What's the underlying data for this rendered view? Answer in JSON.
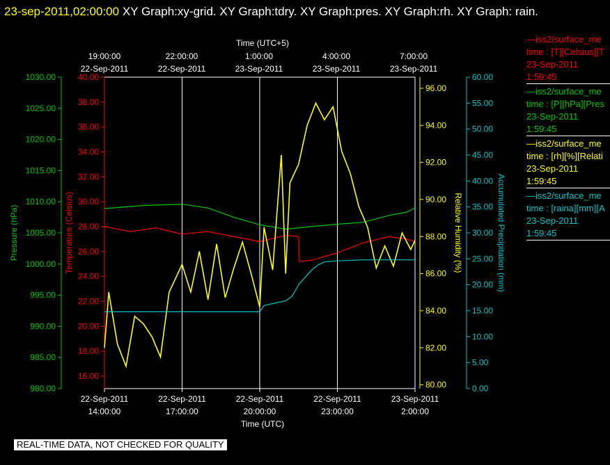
{
  "header": {
    "time": "23-sep-2011,02:00:00",
    "title": "XY Graph:xy-grid.  XY Graph:tdry.  XY Graph:pres.  XY Graph:rh.  XY Graph: rain."
  },
  "notice": "REAL-TIME DATA, NOT CHECKED FOR QUALITY",
  "colors": {
    "pressure": "#00c800",
    "temperature": "#ff0000",
    "rh": "#ffff00",
    "rain": "#00c8c8",
    "grid": "#ffffff"
  },
  "legend": [
    {
      "title": "—iss2/surface_me",
      "lines": [
        "time : [T][Celsius][T",
        "23-Sep-2011",
        "1:59:45"
      ],
      "color": "#ff0000"
    },
    {
      "title": "—iss2/surface_me",
      "lines": [
        "time : [P][hPa][Pres",
        "23-Sep-2011",
        "1:59:45"
      ],
      "color": "#00c800"
    },
    {
      "title": "—iss2/surface_me",
      "lines": [
        "time : [rh][%][Relati",
        "23-Sep-2011",
        "1:59:45"
      ],
      "color": "#ffff00"
    },
    {
      "title": "—iss2/surface_me",
      "lines": [
        "time : [raina][mm][A",
        "23-Sep-2011",
        "1:59:45"
      ],
      "color": "#00c8c8"
    }
  ],
  "chart_data": {
    "type": "line",
    "x_top_label": "Time (UTC+5)",
    "x_bottom_label": "Time (UTC)",
    "x_range": [
      "2011-09-22T14:00",
      "2011-09-23T02:00"
    ],
    "x_ticks_bottom": [
      {
        "date": "22-Sep-2011",
        "time": "14:00:00"
      },
      {
        "date": "22-Sep-2011",
        "time": "17:00:00"
      },
      {
        "date": "22-Sep-2011",
        "time": "20:00:00"
      },
      {
        "date": "22-Sep-2011",
        "time": "23:00:00"
      },
      {
        "date": "23-Sep-2011",
        "time": "2:00:00"
      }
    ],
    "x_ticks_top": [
      {
        "time": "19:00:00",
        "date": "22-Sep-2011"
      },
      {
        "time": "22:00:00",
        "date": "22-Sep-2011"
      },
      {
        "time": "1:00:00",
        "date": "23-Sep-2011"
      },
      {
        "time": "4:00:00",
        "date": "23-Sep-2011"
      },
      {
        "time": "7:00:00",
        "date": "23-Sep-2011"
      }
    ],
    "axes": {
      "pressure": {
        "label": "Pressure (hPa)",
        "range": [
          980,
          1030
        ],
        "ticks": [
          "980.00",
          "985.00",
          "990.00",
          "995.00",
          "1000.00",
          "1005.00",
          "1010.00",
          "1015.00",
          "1020.00",
          "1025.00",
          "1030.00"
        ]
      },
      "temperature": {
        "label": "Temperature (Celsius)",
        "range": [
          15,
          40
        ],
        "ticks": [
          "16.00",
          "18.00",
          "20.00",
          "22.00",
          "24.00",
          "26.00",
          "28.00",
          "30.00",
          "32.00",
          "34.00",
          "36.00",
          "38.00",
          "40.00"
        ]
      },
      "rh": {
        "label": "Relative Humidity (%)",
        "range": [
          79.8,
          96.6
        ],
        "ticks": [
          "80.00",
          "82.00",
          "84.00",
          "86.00",
          "88.00",
          "90.00",
          "92.00",
          "94.00",
          "96.00"
        ]
      },
      "rain": {
        "label": "Accumulated Precipitation (mm)",
        "range": [
          0,
          60
        ],
        "ticks": [
          "0.00",
          "5.00",
          "10.00",
          "15.00",
          "20.00",
          "25.00",
          "30.00",
          "35.00",
          "40.00",
          "45.00",
          "50.00",
          "55.00",
          "60.00"
        ]
      }
    },
    "series": [
      {
        "name": "pressure",
        "unit": "hPa",
        "x": [
          "2011-09-22T14:00",
          "2011-09-22T15:30",
          "2011-09-22T17:00",
          "2011-09-22T18:00",
          "2011-09-22T19:00",
          "2011-09-22T20:00",
          "2011-09-22T21:00",
          "2011-09-22T22:00",
          "2011-09-22T23:00",
          "2011-09-23T00:00",
          "2011-09-23T01:00",
          "2011-09-23T01:40",
          "2011-09-23T02:00"
        ],
        "y": [
          1008.9,
          1009.4,
          1009.6,
          1009.0,
          1007.5,
          1006.3,
          1005.6,
          1006.0,
          1006.4,
          1006.7,
          1007.8,
          1008.3,
          1009.0
        ]
      },
      {
        "name": "temperature",
        "unit": "Celsius",
        "x": [
          "2011-09-22T14:00",
          "2011-09-22T15:00",
          "2011-09-22T16:00",
          "2011-09-22T17:00",
          "2011-09-22T18:00",
          "2011-09-22T19:00",
          "2011-09-22T20:00",
          "2011-09-22T21:00",
          "2011-09-22T21:30",
          "2011-09-22T21:32",
          "2011-09-22T22:00",
          "2011-09-22T23:00",
          "2011-09-23T00:00",
          "2011-09-23T01:00",
          "2011-09-23T01:40",
          "2011-09-23T02:00"
        ],
        "y": [
          28.0,
          27.6,
          27.9,
          27.4,
          27.6,
          27.2,
          26.8,
          27.3,
          27.2,
          25.2,
          25.3,
          25.9,
          26.7,
          27.2,
          27.0,
          26.8
        ]
      },
      {
        "name": "relative_humidity",
        "unit": "%",
        "x": [
          "2011-09-22T14:00",
          "2011-09-22T14:10",
          "2011-09-22T14:30",
          "2011-09-22T14:50",
          "2011-09-22T15:10",
          "2011-09-22T15:30",
          "2011-09-22T15:50",
          "2011-09-22T16:10",
          "2011-09-22T16:30",
          "2011-09-22T16:50",
          "2011-09-22T17:00",
          "2011-09-22T17:20",
          "2011-09-22T17:40",
          "2011-09-22T18:00",
          "2011-09-22T18:20",
          "2011-09-22T18:40",
          "2011-09-22T19:00",
          "2011-09-22T19:20",
          "2011-09-22T19:40",
          "2011-09-22T20:00",
          "2011-09-22T20:10",
          "2011-09-22T20:30",
          "2011-09-22T20:50",
          "2011-09-22T21:00",
          "2011-09-22T21:10",
          "2011-09-22T21:30",
          "2011-09-22T21:50",
          "2011-09-22T22:10",
          "2011-09-22T22:30",
          "2011-09-22T22:50",
          "2011-09-22T23:10",
          "2011-09-22T23:30",
          "2011-09-22T23:50",
          "2011-09-23T00:10",
          "2011-09-23T00:30",
          "2011-09-23T00:50",
          "2011-09-23T01:10",
          "2011-09-23T01:30",
          "2011-09-23T01:50",
          "2011-09-23T02:00"
        ],
        "y": [
          82.0,
          85.0,
          82.2,
          81.0,
          83.7,
          83.3,
          82.6,
          81.5,
          85.0,
          86.0,
          86.5,
          85.0,
          87.2,
          84.6,
          87.6,
          84.7,
          86.3,
          87.7,
          86.0,
          84.2,
          88.5,
          86.2,
          92.4,
          86.0,
          90.9,
          91.9,
          94.0,
          95.2,
          94.3,
          95.0,
          92.6,
          91.4,
          89.6,
          88.5,
          86.3,
          87.5,
          86.4,
          88.2,
          87.3,
          87.8
        ]
      },
      {
        "name": "accumulated_precipitation",
        "unit": "mm",
        "x": [
          "2011-09-22T14:00",
          "2011-09-22T20:00",
          "2011-09-22T20:10",
          "2011-09-22T21:00",
          "2011-09-22T21:15",
          "2011-09-22T21:30",
          "2011-09-22T21:45",
          "2011-09-22T22:00",
          "2011-09-22T22:15",
          "2011-09-22T22:30",
          "2011-09-22T23:00",
          "2011-09-23T00:00",
          "2011-09-23T01:00",
          "2011-09-23T02:00"
        ],
        "y": [
          14.8,
          14.8,
          16.0,
          16.9,
          17.8,
          20.0,
          21.4,
          22.8,
          23.8,
          24.4,
          24.6,
          24.8,
          24.8,
          24.8
        ]
      }
    ]
  }
}
